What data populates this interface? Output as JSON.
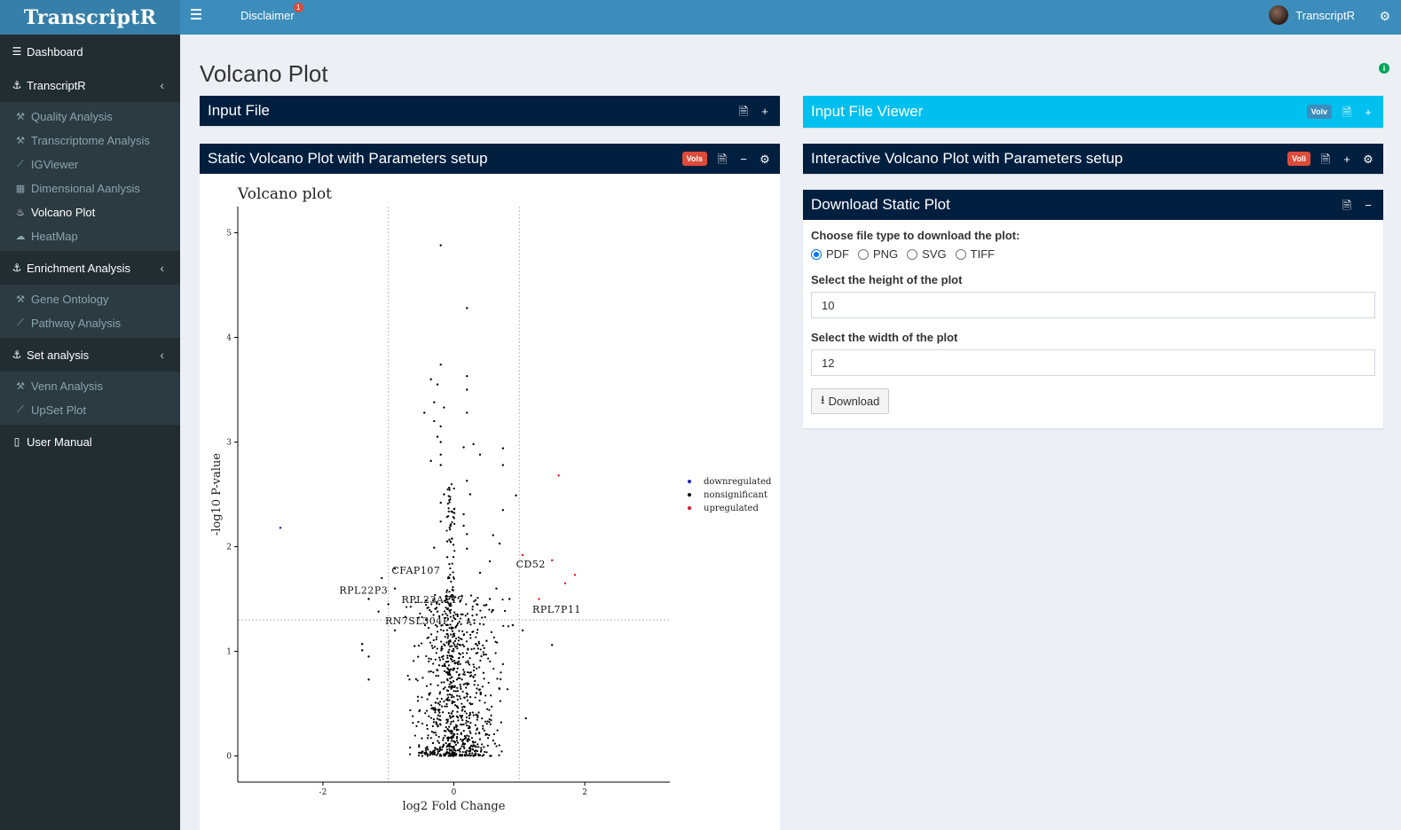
{
  "app": {
    "title": "TranscriptR",
    "user": "TranscriptR"
  },
  "header": {
    "disclaimer_label": "Disclaimer",
    "disclaimer_badge": "1"
  },
  "sidebar": {
    "dashboard": "Dashboard",
    "transcriptr": {
      "label": "TranscriptR",
      "items": [
        "Quality Analysis",
        "Transcriptome Analysis",
        "IGViewer",
        "Dimensional Aanlysis",
        "Volcano Plot",
        "HeatMap"
      ]
    },
    "enrichment": {
      "label": "Enrichment Analysis",
      "items": [
        "Gene Ontology",
        "Pathway Analysis"
      ]
    },
    "set_analysis": {
      "label": "Set analysis",
      "items": [
        "Venn Analysis",
        "UpSet Plot"
      ]
    },
    "user_manual": "User Manual",
    "active_item": "Volcano Plot"
  },
  "page": {
    "title": "Volcano Plot"
  },
  "boxes": {
    "input_file": {
      "title": "Input File"
    },
    "input_viewer": {
      "title": "Input File Viewer",
      "tag": "Volv"
    },
    "static_plot": {
      "title": "Static Volcano Plot with Parameters setup",
      "tag": "Vols"
    },
    "interactive_plot": {
      "title": "Interactive Volcano Plot with Parameters setup",
      "tag": "Voli"
    },
    "download": {
      "title": "Download Static Plot",
      "file_type_label": "Choose file type to download the plot:",
      "file_types": [
        "PDF",
        "PNG",
        "SVG",
        "TIFF"
      ],
      "selected_type": "PDF",
      "height_label": "Select the height of the plot",
      "height_value": "10",
      "width_label": "Select the width of the plot",
      "width_value": "12",
      "button_label": "Download"
    }
  },
  "colors": {
    "header": "#3c8dbc",
    "logo": "#367fa9",
    "sidebar": "#222d32",
    "navy": "#001f3f",
    "aqua": "#00c0ef",
    "red": "#dd4b39",
    "downregulated": "#1f1fbf",
    "nonsignificant": "#000000",
    "upregulated": "#e8102a"
  },
  "chart_data": {
    "type": "scatter",
    "title": "Volcano plot",
    "xlabel": "log2 Fold Change",
    "ylabel": "-log10 P-value",
    "xlim": [
      -3.3,
      3.3
    ],
    "ylim": [
      -0.25,
      5.25
    ],
    "x_ticks": [
      -2,
      0,
      2
    ],
    "y_ticks": [
      0,
      1,
      2,
      3,
      4,
      5
    ],
    "thresholds": {
      "fc": [
        -1,
        1
      ],
      "p": 1.3
    },
    "legend": {
      "position": "right",
      "entries": [
        "downregulated",
        "nonsignificant",
        "upregulated"
      ]
    },
    "series": [
      {
        "name": "downregulated",
        "points": [
          [
            -2.65,
            2.18
          ]
        ]
      },
      {
        "name": "upregulated",
        "points": [
          [
            1.6,
            2.68
          ],
          [
            1.05,
            1.92
          ],
          [
            1.5,
            1.87
          ],
          [
            1.85,
            1.73
          ],
          [
            1.7,
            1.65
          ],
          [
            1.3,
            1.5
          ]
        ]
      },
      {
        "name": "nonsignificant",
        "points": [
          [
            -0.2,
            4.88
          ],
          [
            0.2,
            4.28
          ],
          [
            -0.2,
            3.74
          ],
          [
            0.2,
            3.63
          ],
          [
            -0.35,
            3.6
          ],
          [
            -0.25,
            3.55
          ],
          [
            0.2,
            3.5
          ],
          [
            -0.3,
            3.38
          ],
          [
            -0.15,
            3.33
          ],
          [
            -0.45,
            3.28
          ],
          [
            0.2,
            3.28
          ],
          [
            -0.3,
            3.2
          ],
          [
            -0.2,
            3.15
          ],
          [
            -0.25,
            3.05
          ],
          [
            -0.2,
            3.0
          ],
          [
            0.3,
            2.98
          ],
          [
            0.15,
            2.95
          ],
          [
            0.75,
            2.94
          ],
          [
            -0.2,
            2.88
          ],
          [
            0.4,
            2.88
          ],
          [
            -0.35,
            2.82
          ],
          [
            -0.2,
            2.78
          ],
          [
            0.75,
            2.78
          ],
          [
            0.2,
            2.63
          ],
          [
            -0.15,
            2.5
          ],
          [
            0.25,
            2.5
          ],
          [
            0.95,
            2.49
          ],
          [
            -0.2,
            2.42
          ],
          [
            0.75,
            2.35
          ],
          [
            0.15,
            2.31
          ],
          [
            -0.2,
            2.24
          ],
          [
            0.15,
            2.2
          ],
          [
            0.2,
            2.12
          ],
          [
            0.6,
            2.11
          ],
          [
            -0.1,
            2.05
          ],
          [
            0.7,
            2.03
          ],
          [
            -0.3,
            1.99
          ],
          [
            0.2,
            1.98
          ],
          [
            -0.1,
            1.9
          ],
          [
            0.55,
            1.86
          ],
          [
            -0.9,
            1.79
          ],
          [
            -1.1,
            1.7
          ],
          [
            0.4,
            1.75
          ],
          [
            -0.9,
            1.6
          ],
          [
            0.65,
            1.6
          ],
          [
            -1.3,
            1.5
          ],
          [
            -1.0,
            1.45
          ],
          [
            0.55,
            1.5
          ],
          [
            0.85,
            1.5
          ],
          [
            -1.15,
            1.38
          ],
          [
            -0.25,
            1.38
          ],
          [
            0.35,
            1.35
          ],
          [
            0.9,
            1.25
          ],
          [
            1.05,
            1.2
          ],
          [
            -0.9,
            1.2
          ],
          [
            -1.4,
            1.07
          ],
          [
            -1.4,
            1.01
          ],
          [
            -1.3,
            0.95
          ],
          [
            -1.3,
            0.73
          ],
          [
            1.1,
            0.36
          ],
          [
            1.5,
            1.06
          ],
          [
            -0.6,
            1.05
          ],
          [
            0.5,
            1.1
          ]
        ]
      }
    ],
    "labels": [
      {
        "text": "CFAP107",
        "x": -0.95,
        "y": 1.74
      },
      {
        "text": "RPL22P3",
        "x": -1.75,
        "y": 1.55
      },
      {
        "text": "RPL23AP17",
        "x": -0.8,
        "y": 1.46
      },
      {
        "text": "RN7SL304P",
        "x": -1.05,
        "y": 1.26
      },
      {
        "text": "CD52",
        "x": 0.95,
        "y": 1.8
      },
      {
        "text": "RPL7P11",
        "x": 1.2,
        "y": 1.37
      }
    ]
  }
}
